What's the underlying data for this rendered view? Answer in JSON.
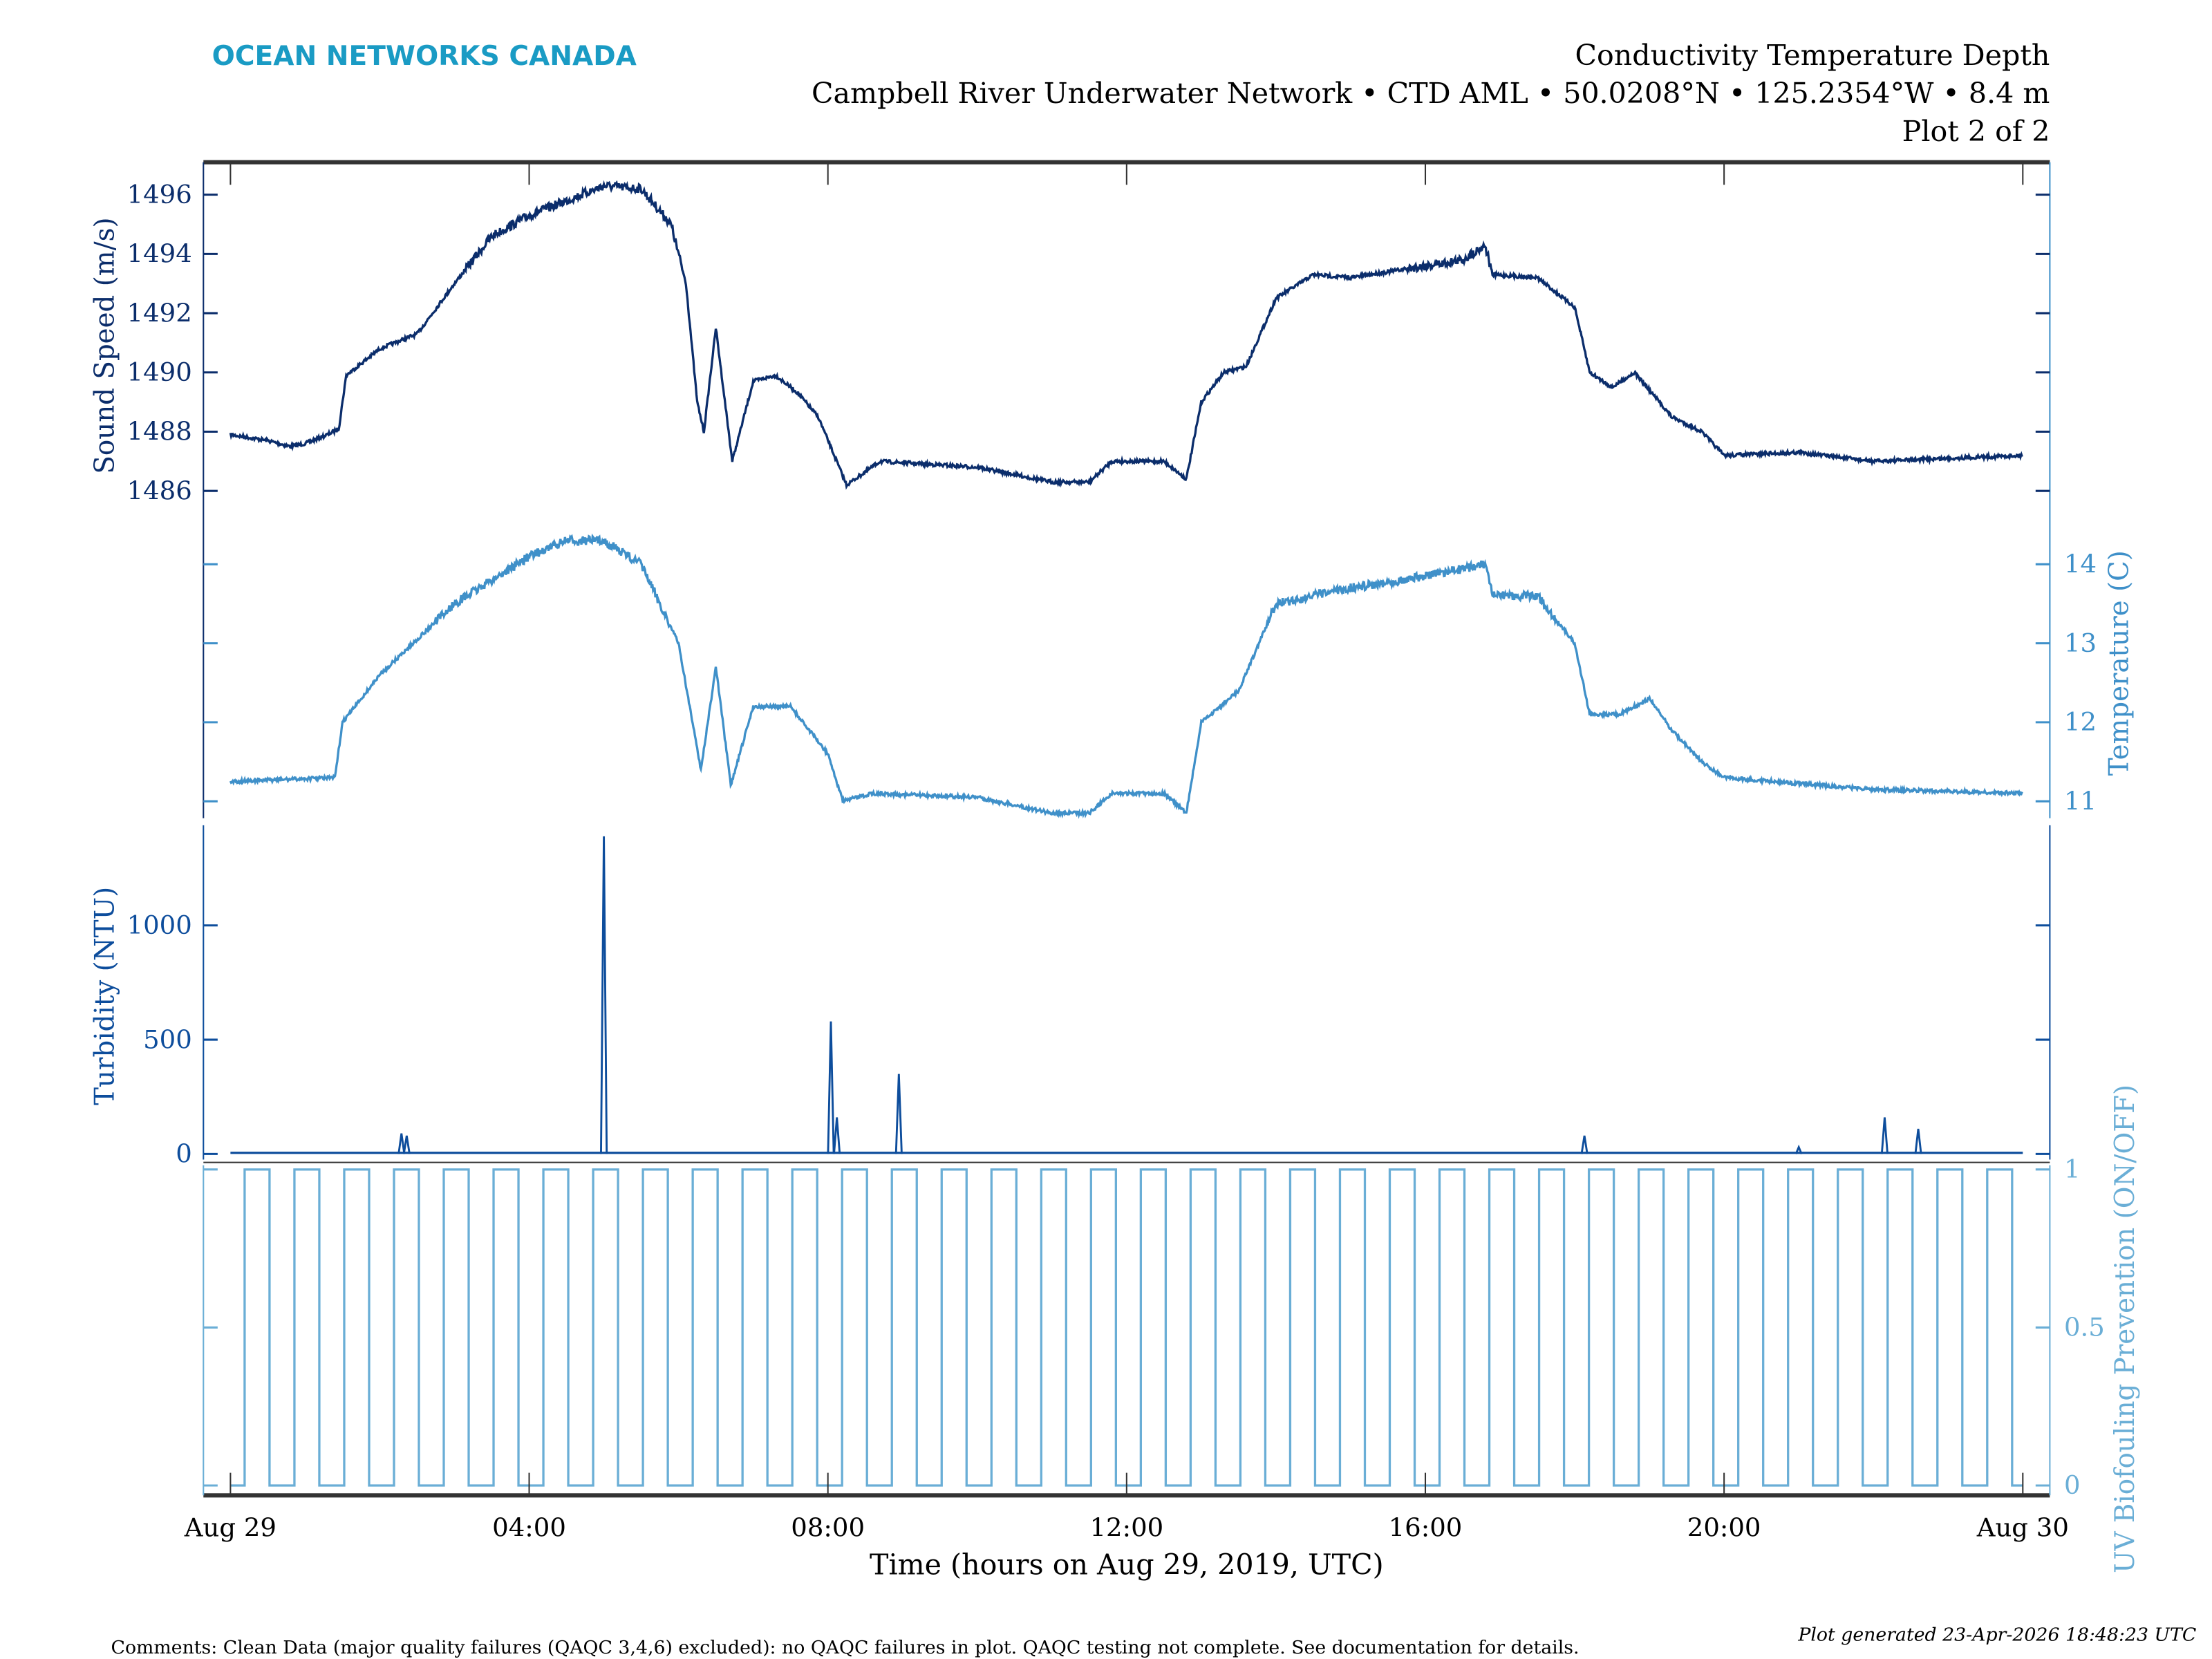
{
  "header": {
    "brand": "OCEAN NETWORKS CANADA",
    "title": "Conductivity Temperature Depth",
    "subtitle": "Campbell River Underwater Network • CTD AML • 50.0208°N • 125.2354°W • 8.4 m",
    "plot_index": "Plot 2 of 2"
  },
  "footer": {
    "comments": "Comments: Clean Data (major quality failures (QAQC 3,4,6) excluded): no QAQC failures in plot. QAQC testing not complete. See documentation for details.",
    "generated": "Plot generated 23-Apr-2026 18:48:23 UTC"
  },
  "colors": {
    "brand": "#1a9bc4",
    "sound_speed": "#0b2d6b",
    "temperature": "#3f90c9",
    "turbidity": "#0d4d9c",
    "uv": "#6aaed6",
    "axis": "#333333"
  },
  "chart_data": {
    "type": "line",
    "xlabel": "Time (hours on Aug 29, 2019, UTC)",
    "xlim": [
      0,
      24
    ],
    "x_ticks": [
      0,
      4,
      8,
      12,
      16,
      20,
      24
    ],
    "x_tick_labels": [
      "Aug 29",
      "04:00",
      "08:00",
      "12:00",
      "16:00",
      "20:00",
      "Aug 30"
    ],
    "grid": false,
    "series": [
      {
        "key": "sound_speed",
        "ylabel": "Sound Speed (m/s)",
        "axis": "left",
        "ylim": [
          1486,
          1496
        ],
        "y_ticks": [
          1486,
          1488,
          1490,
          1492,
          1494,
          1496
        ],
        "x": [
          0,
          0.5,
          0.8,
          1,
          1.3,
          1.45,
          1.55,
          2,
          2.5,
          3,
          3.5,
          4,
          4.5,
          5,
          5.5,
          5.9,
          6.1,
          6.25,
          6.34,
          6.5,
          6.72,
          7,
          7.3,
          7.6,
          7.87,
          8.25,
          8.7,
          10,
          11,
          11.5,
          11.8,
          12.5,
          12.8,
          13,
          13.3,
          13.6,
          14,
          14.5,
          15,
          16,
          16.5,
          16.8,
          16.9,
          17.5,
          18,
          18.2,
          18.5,
          18.8,
          19,
          19.3,
          19.7,
          20,
          21,
          22,
          23,
          24
        ],
        "y": [
          1487.9,
          1487.7,
          1487.5,
          1487.6,
          1487.9,
          1488.1,
          1489.9,
          1490.8,
          1491.3,
          1493.0,
          1494.6,
          1495.3,
          1495.8,
          1496.3,
          1496.2,
          1495.0,
          1493.0,
          1489.0,
          1488.0,
          1491.5,
          1487.0,
          1489.7,
          1489.9,
          1489.3,
          1488.5,
          1486.2,
          1487.0,
          1486.8,
          1486.3,
          1486.3,
          1487.0,
          1487.0,
          1486.4,
          1489.0,
          1490.0,
          1490.2,
          1492.5,
          1493.3,
          1493.2,
          1493.6,
          1493.8,
          1494.3,
          1493.3,
          1493.2,
          1492.2,
          1490.0,
          1489.5,
          1490.0,
          1489.4,
          1488.5,
          1488.0,
          1487.2,
          1487.3,
          1487.0,
          1487.1,
          1487.2
        ]
      },
      {
        "key": "temperature",
        "ylabel": "Temperature (C)",
        "axis": "right",
        "ylim": [
          11,
          14
        ],
        "y_ticks": [
          11,
          12,
          13,
          14
        ],
        "x": [
          0,
          1.4,
          1.5,
          2,
          3,
          4,
          4.5,
          5,
          5.5,
          6,
          6.3,
          6.5,
          6.7,
          7,
          7.5,
          8,
          8.2,
          8.6,
          10,
          11,
          11.5,
          11.8,
          12.5,
          12.8,
          13,
          13.5,
          14,
          15,
          16,
          16.8,
          16.9,
          17.5,
          18,
          18.2,
          18.6,
          19,
          19.3,
          19.7,
          20,
          22,
          24
        ],
        "y": [
          11.25,
          11.3,
          12.0,
          12.6,
          13.5,
          14.1,
          14.3,
          14.3,
          14.0,
          13.0,
          11.4,
          12.7,
          11.2,
          12.2,
          12.2,
          11.6,
          11.0,
          11.1,
          11.05,
          10.85,
          10.85,
          11.1,
          11.1,
          10.85,
          12.0,
          12.4,
          13.5,
          13.7,
          13.85,
          14.0,
          13.6,
          13.6,
          13.0,
          12.1,
          12.1,
          12.3,
          11.9,
          11.5,
          11.3,
          11.15,
          11.1
        ]
      },
      {
        "key": "turbidity",
        "ylabel": "Turbidity (NTU)",
        "axis": "left",
        "ylim": [
          0,
          1400
        ],
        "y_ticks": [
          0,
          500,
          1000
        ],
        "baseline": 5,
        "spikes": [
          {
            "x": 2.29,
            "y": 90
          },
          {
            "x": 2.36,
            "y": 80
          },
          {
            "x": 5.0,
            "y": 1390
          },
          {
            "x": 8.04,
            "y": 580
          },
          {
            "x": 8.12,
            "y": 160
          },
          {
            "x": 8.95,
            "y": 350
          },
          {
            "x": 18.13,
            "y": 80
          },
          {
            "x": 21.0,
            "y": 30
          },
          {
            "x": 22.15,
            "y": 160
          },
          {
            "x": 22.6,
            "y": 110
          }
        ]
      },
      {
        "key": "uv",
        "ylabel": "UV Biofouling Prevention (ON/OFF)",
        "axis": "right",
        "ylim": [
          0,
          1
        ],
        "y_ticks": [
          0,
          0.5,
          1
        ],
        "y_tick_labels": [
          "0",
          "0.5",
          "1"
        ],
        "pattern": {
          "first_on_hour": 0.19,
          "on_minutes": 20,
          "off_minutes": 20
        }
      }
    ],
    "sound_speed_tick_labels": [
      "1486",
      "1488",
      "1490",
      "1492",
      "1494",
      "1496"
    ],
    "temperature_tick_labels": [
      "11",
      "12",
      "13",
      "14"
    ],
    "turbidity_tick_labels": [
      "0",
      "500",
      "1000"
    ]
  }
}
